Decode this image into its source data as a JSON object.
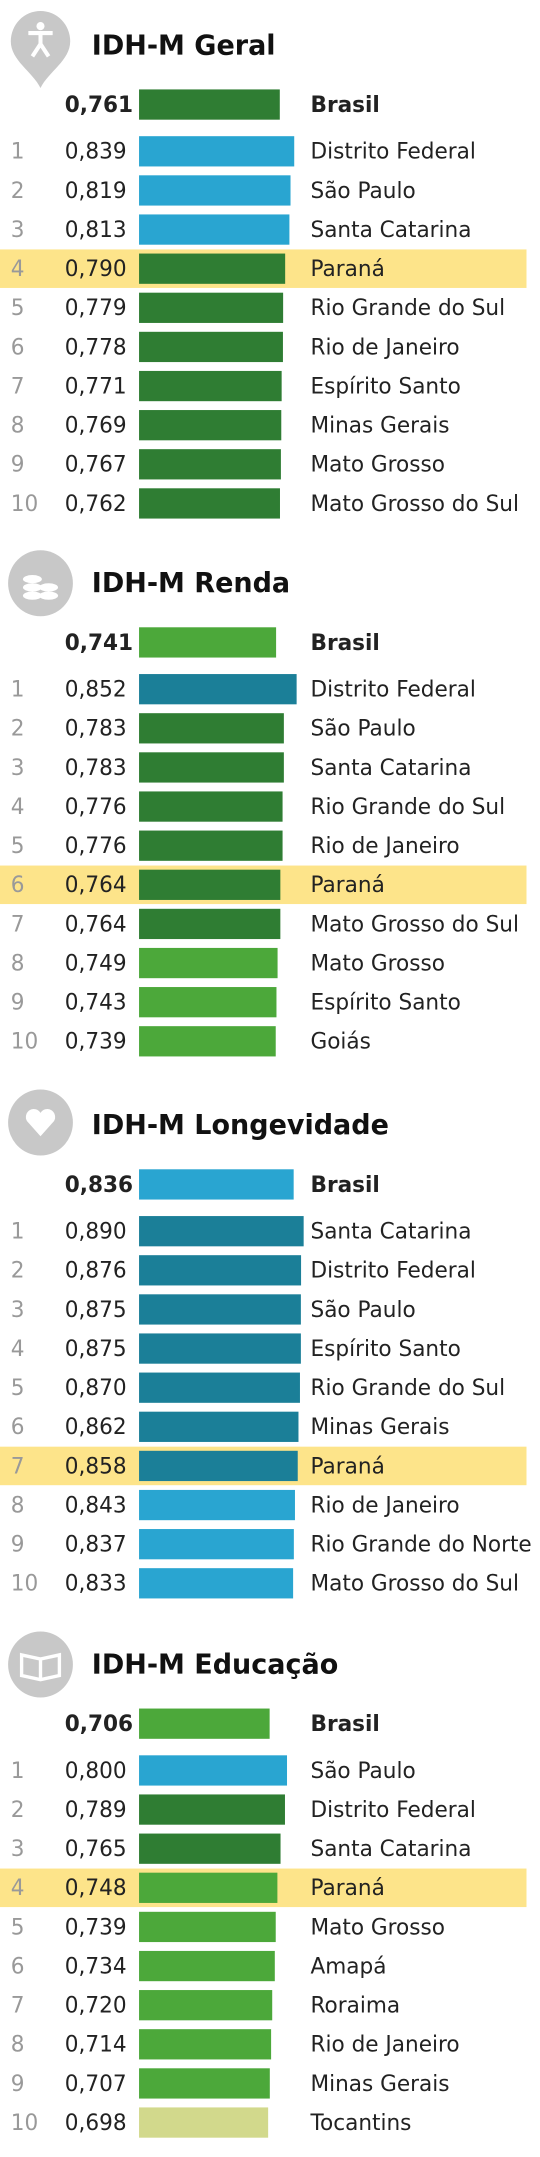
{
  "chart_data": [
    {
      "type": "bar",
      "title": "IDH-M Geral",
      "highlight_index": 4,
      "categories": [
        "Brasil",
        "Distrito Federal",
        "São Paulo",
        "Santa Catarina",
        "Paraná",
        "Rio Grande do Sul",
        "Rio de Janeiro",
        "Espírito Santo",
        "Minas Gerais",
        "Mato Grosso",
        "Mato Grosso do Sul"
      ],
      "ranks": [
        null,
        1,
        2,
        3,
        4,
        5,
        6,
        7,
        8,
        9,
        10
      ],
      "values": [
        0.761,
        0.839,
        0.819,
        0.813,
        0.79,
        0.779,
        0.778,
        0.771,
        0.769,
        0.767,
        0.762
      ],
      "value_labels": [
        "0,761",
        "0,839",
        "0,819",
        "0,813",
        "0,790",
        "0,779",
        "0,778",
        "0,771",
        "0,769",
        "0,767",
        "0,762"
      ],
      "colors": [
        "#2f7d33",
        "#29a5d1",
        "#29a5d1",
        "#29a5d1",
        "#2f7d33",
        "#2f7d33",
        "#2f7d33",
        "#2f7d33",
        "#2f7d33",
        "#2f7d33",
        "#2f7d33"
      ]
    },
    {
      "type": "bar",
      "title": "IDH-M Renda",
      "highlight_index": 6,
      "categories": [
        "Brasil",
        "Distrito Federal",
        "São Paulo",
        "Santa Catarina",
        "Rio Grande do Sul",
        "Rio de Janeiro",
        "Paraná",
        "Mato Grosso do Sul",
        "Mato Grosso",
        "Espírito Santo",
        "Goiás"
      ],
      "ranks": [
        null,
        1,
        2,
        3,
        4,
        5,
        6,
        7,
        8,
        9,
        10
      ],
      "values": [
        0.741,
        0.852,
        0.783,
        0.783,
        0.776,
        0.776,
        0.764,
        0.764,
        0.749,
        0.743,
        0.739
      ],
      "value_labels": [
        "0,741",
        "0,852",
        "0,783",
        "0,783",
        "0,776",
        "0,776",
        "0,764",
        "0,764",
        "0,749",
        "0,743",
        "0,739"
      ],
      "colors": [
        "#4ca83a",
        "#1b7f98",
        "#2f7d33",
        "#2f7d33",
        "#2f7d33",
        "#2f7d33",
        "#2f7d33",
        "#2f7d33",
        "#4ca83a",
        "#4ca83a",
        "#4ca83a"
      ]
    },
    {
      "type": "bar",
      "title": "IDH-M Longevidade",
      "highlight_index": 7,
      "categories": [
        "Brasil",
        "Santa Catarina",
        "Distrito Federal",
        "São Paulo",
        "Espírito Santo",
        "Rio Grande do Sul",
        "Minas Gerais",
        "Paraná",
        "Rio de Janeiro",
        "Rio Grande do Norte",
        "Mato Grosso do Sul"
      ],
      "ranks": [
        null,
        1,
        2,
        3,
        4,
        5,
        6,
        7,
        8,
        9,
        10
      ],
      "values": [
        0.836,
        0.89,
        0.876,
        0.875,
        0.875,
        0.87,
        0.862,
        0.858,
        0.843,
        0.837,
        0.833
      ],
      "value_labels": [
        "0,836",
        "0,890",
        "0,876",
        "0,875",
        "0,875",
        "0,870",
        "0,862",
        "0,858",
        "0,843",
        "0,837",
        "0,833"
      ],
      "colors": [
        "#29a5d1",
        "#1b7f98",
        "#1b7f98",
        "#1b7f98",
        "#1b7f98",
        "#1b7f98",
        "#1b7f98",
        "#1b7f98",
        "#29a5d1",
        "#29a5d1",
        "#29a5d1"
      ]
    },
    {
      "type": "bar",
      "title": "IDH-M Educação",
      "highlight_index": 4,
      "categories": [
        "Brasil",
        "São Paulo",
        "Distrito Federal",
        "Santa Catarina",
        "Paraná",
        "Mato Grosso",
        "Amapá",
        "Roraima",
        "Rio de Janeiro",
        "Minas Gerais",
        "Tocantins"
      ],
      "ranks": [
        null,
        1,
        2,
        3,
        4,
        5,
        6,
        7,
        8,
        9,
        10
      ],
      "values": [
        0.706,
        0.8,
        0.789,
        0.765,
        0.748,
        0.739,
        0.734,
        0.72,
        0.714,
        0.707,
        0.698
      ],
      "value_labels": [
        "0,706",
        "0,800",
        "0,789",
        "0,765",
        "0,748",
        "0,739",
        "0,734",
        "0,720",
        "0,714",
        "0,707",
        "0,698"
      ],
      "colors": [
        "#4ca83a",
        "#29a5d1",
        "#2f7d33",
        "#2f7d33",
        "#4ca83a",
        "#4ca83a",
        "#4ca83a",
        "#4ca83a",
        "#4ca83a",
        "#4ca83a",
        "#d2d98c"
      ]
    }
  ]
}
